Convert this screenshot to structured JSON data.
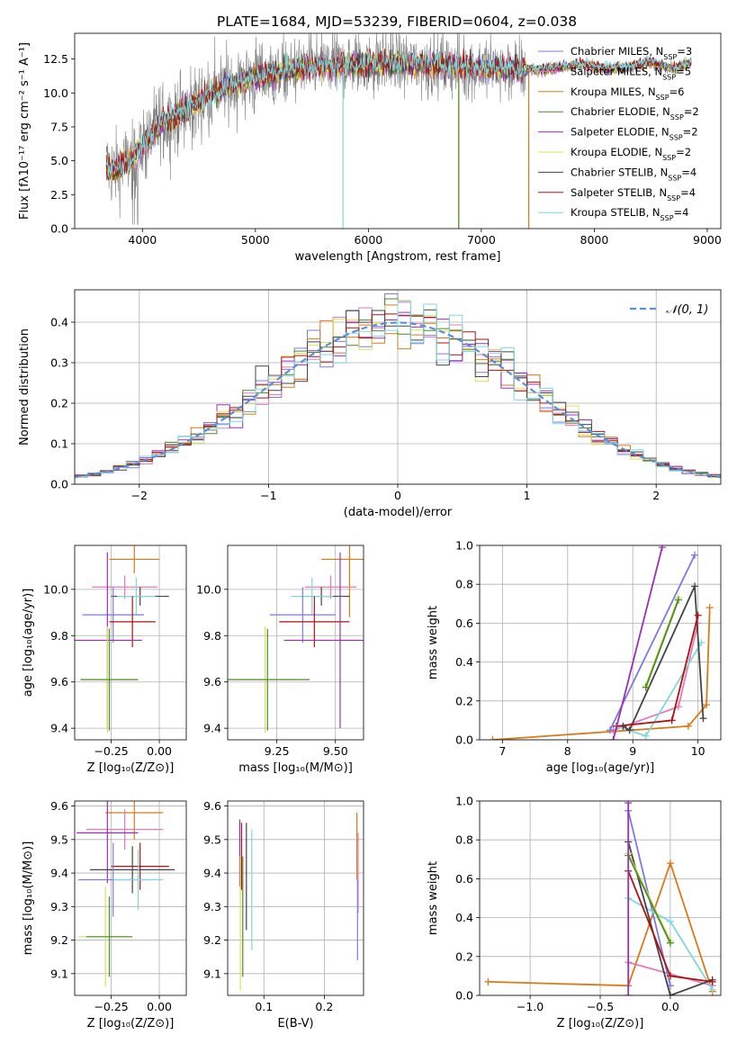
{
  "figure_title": "PLATE=1684, MJD=53239, FIBERID=0604, z=0.038",
  "colors": {
    "Chabrier MILES": "#7b7be0",
    "Salpeter MILES": "#e57ab8",
    "Kroupa MILES": "#d97a1a",
    "Chabrier ELODIE": "#4c8c2b",
    "Salpeter ELODIE": "#9b30b8",
    "Kroupa ELODIE": "#d9e05a",
    "Chabrier STELIB": "#444444",
    "Salpeter STELIB": "#b01010",
    "Kroupa STELIB": "#7fd8e0",
    "data": "#808080",
    "normal": "#5b8fd6"
  },
  "chart_data": [
    {
      "type": "line",
      "title": "PLATE=1684, MJD=53239, FIBERID=0604, z=0.038",
      "xlabel": "wavelength [Angstrom, rest frame]",
      "ylabel": "Flux [fλ10⁻¹⁷ erg cm⁻² s⁻¹ A⁻¹]",
      "xlim": [
        3400,
        9120
      ],
      "ylim": [
        0,
        14.4
      ],
      "xticks": [
        4000,
        5000,
        6000,
        7000,
        8000,
        9000
      ],
      "yticks": [
        0.0,
        2.5,
        5.0,
        7.5,
        10.0,
        12.5
      ],
      "legend": [
        {
          "label": "Chabrier MILES, N",
          "sub": "SSP",
          "suffix": "=3"
        },
        {
          "label": "Salpeter MILES, N",
          "sub": "SSP",
          "suffix": "=5"
        },
        {
          "label": "Kroupa MILES, N",
          "sub": "SSP",
          "suffix": "=6"
        },
        {
          "label": "Chabrier ELODIE, N",
          "sub": "SSP",
          "suffix": "=2"
        },
        {
          "label": "Salpeter ELODIE, N",
          "sub": "SSP",
          "suffix": "=2"
        },
        {
          "label": "Kroupa ELODIE, N",
          "sub": "SSP",
          "suffix": "=2"
        },
        {
          "label": "Chabrier STELIB, N",
          "sub": "SSP",
          "suffix": "=4"
        },
        {
          "label": "Salpeter STELIB, N",
          "sub": "SSP",
          "suffix": "=4"
        },
        {
          "label": "Kroupa STELIB, N",
          "sub": "SSP",
          "suffix": "=4"
        }
      ],
      "series_continuum": {
        "x": [
          3680,
          3750,
          3850,
          3950,
          4050,
          4150,
          4300,
          4500,
          4700,
          4900,
          5100,
          5300,
          5500,
          5700,
          5900,
          6100,
          6300,
          6500,
          6700,
          6900,
          7100,
          7300,
          7500,
          7700,
          7900,
          8100,
          8300,
          8500,
          8700,
          8860
        ],
        "y": [
          4.6,
          4.3,
          4.8,
          5.5,
          6.6,
          7.6,
          8.4,
          9.3,
          10.3,
          10.9,
          11.3,
          11.7,
          11.9,
          12.0,
          12.1,
          12.2,
          12.2,
          12.1,
          12.0,
          11.9,
          11.9,
          11.8,
          11.7,
          11.9,
          12.1,
          11.8,
          11.9,
          12.3,
          11.8,
          12.3
        ]
      }
    },
    {
      "type": "histogram",
      "xlabel": "(data-model)/error",
      "ylabel": "Normed distribution",
      "xlim": [
        -2.5,
        2.5
      ],
      "ylim": [
        0,
        0.48
      ],
      "xticks": [
        -2,
        -1,
        0,
        1,
        2
      ],
      "yticks": [
        0.0,
        0.1,
        0.2,
        0.3,
        0.4
      ],
      "legend": "𝒩(0, 1)",
      "bin_width": 0.1
    },
    {
      "type": "errorbar",
      "xlabel": "Z [log₁₀(Z/Z⊙)]",
      "ylabel": "age  [log₁₀(age/yr)]",
      "xlim": [
        -0.44,
        0.14
      ],
      "ylim": [
        9.35,
        10.19
      ],
      "xticks": [
        -0.25,
        0.0
      ],
      "yticks": [
        9.4,
        9.6,
        9.8,
        10.0
      ]
    },
    {
      "type": "errorbar",
      "xlabel": "mass [log₁₀(M/M⊙)]",
      "ylabel": "",
      "xlim": [
        9.04,
        9.62
      ],
      "ylim": [
        9.35,
        10.19
      ],
      "xticks": [
        9.25,
        9.5
      ],
      "yticks": [
        9.4,
        9.6,
        9.8,
        10.0
      ]
    },
    {
      "type": "line",
      "xlabel": "age  [log₁₀(age/yr)]",
      "ylabel": "mass weight",
      "xlim": [
        6.65,
        10.35
      ],
      "ylim": [
        0,
        1.0
      ],
      "xticks": [
        7,
        8,
        9,
        10
      ],
      "yticks": [
        0.0,
        0.2,
        0.4,
        0.6,
        0.8,
        1.0
      ]
    },
    {
      "type": "errorbar",
      "xlabel": "Z [log₁₀(Z/Z⊙)]",
      "ylabel": "mass [log₁₀(M/M⊙)]",
      "xlim": [
        -0.44,
        0.14
      ],
      "ylim": [
        9.035,
        9.615
      ],
      "xticks": [
        -0.25,
        0.0
      ],
      "yticks": [
        9.1,
        9.2,
        9.3,
        9.4,
        9.5,
        9.6
      ]
    },
    {
      "type": "errorbar",
      "xlabel": "E(B-V)",
      "ylabel": "",
      "xlim": [
        0.04,
        0.265
      ],
      "ylim": [
        9.035,
        9.615
      ],
      "xticks": [
        0.1,
        0.2
      ],
      "yticks": [
        9.1,
        9.2,
        9.3,
        9.4,
        9.5,
        9.6
      ]
    },
    {
      "type": "line",
      "xlabel": "Z [log₁₀(Z/Z⊙)]",
      "ylabel": "mass weight",
      "xlim": [
        -1.36,
        0.36
      ],
      "ylim": [
        0,
        1.0
      ],
      "xticks": [
        -1.0,
        -0.5,
        0.0
      ],
      "yticks": [
        0.0,
        0.2,
        0.4,
        0.6,
        0.8,
        1.0
      ]
    }
  ]
}
